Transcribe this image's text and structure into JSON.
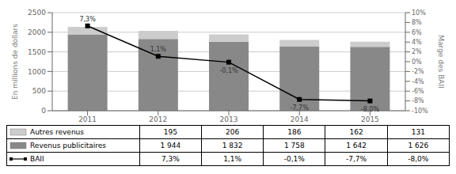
{
  "chart_data": {
    "type": "bar",
    "categories": [
      "2011",
      "2012",
      "2013",
      "2014",
      "2015"
    ],
    "stacked": true,
    "grid": true,
    "legend": "bottom",
    "ylabel": "En millions de dollars",
    "y2label": "Marge des BAII",
    "ylim": [
      0,
      2500
    ],
    "yticks": [
      0,
      500,
      1000,
      1500,
      2000,
      2500
    ],
    "y2lim": [
      -10,
      10
    ],
    "y2ticks": [
      {
        "value": -10,
        "label": "-10%"
      },
      {
        "value": -8,
        "label": "-8%"
      },
      {
        "value": -6,
        "label": "-6%"
      },
      {
        "value": -4,
        "label": "-4%"
      },
      {
        "value": -2,
        "label": "-2%"
      },
      {
        "value": 0,
        "label": "0%"
      },
      {
        "value": 2,
        "label": "2%"
      },
      {
        "value": 4,
        "label": "4%"
      },
      {
        "value": 6,
        "label": "6%"
      },
      {
        "value": 8,
        "label": "8%"
      },
      {
        "value": 10,
        "label": "10%"
      }
    ],
    "series": [
      {
        "name": "Revenus publicitaires",
        "type": "bar",
        "color": "#888888",
        "values": [
          1944,
          1832,
          1758,
          1642,
          1626
        ],
        "value_labels": [
          "1 944",
          "1 832",
          "1 758",
          "1 642",
          "1 626"
        ]
      },
      {
        "name": "Autres revenus",
        "type": "bar",
        "color": "#cccccc",
        "values": [
          195,
          206,
          186,
          162,
          131
        ],
        "value_labels": [
          "195",
          "206",
          "186",
          "162",
          "131"
        ]
      },
      {
        "name": "BAII",
        "type": "line",
        "axis": "y2",
        "color": "#000000",
        "marker": "square",
        "data_labels": true,
        "values": [
          7.3,
          1.1,
          -0.1,
          -7.7,
          -8.0
        ],
        "value_labels": [
          "7,3%",
          "1,1%",
          "-0,1%",
          "-7,7%",
          "-8,0%"
        ]
      }
    ]
  }
}
